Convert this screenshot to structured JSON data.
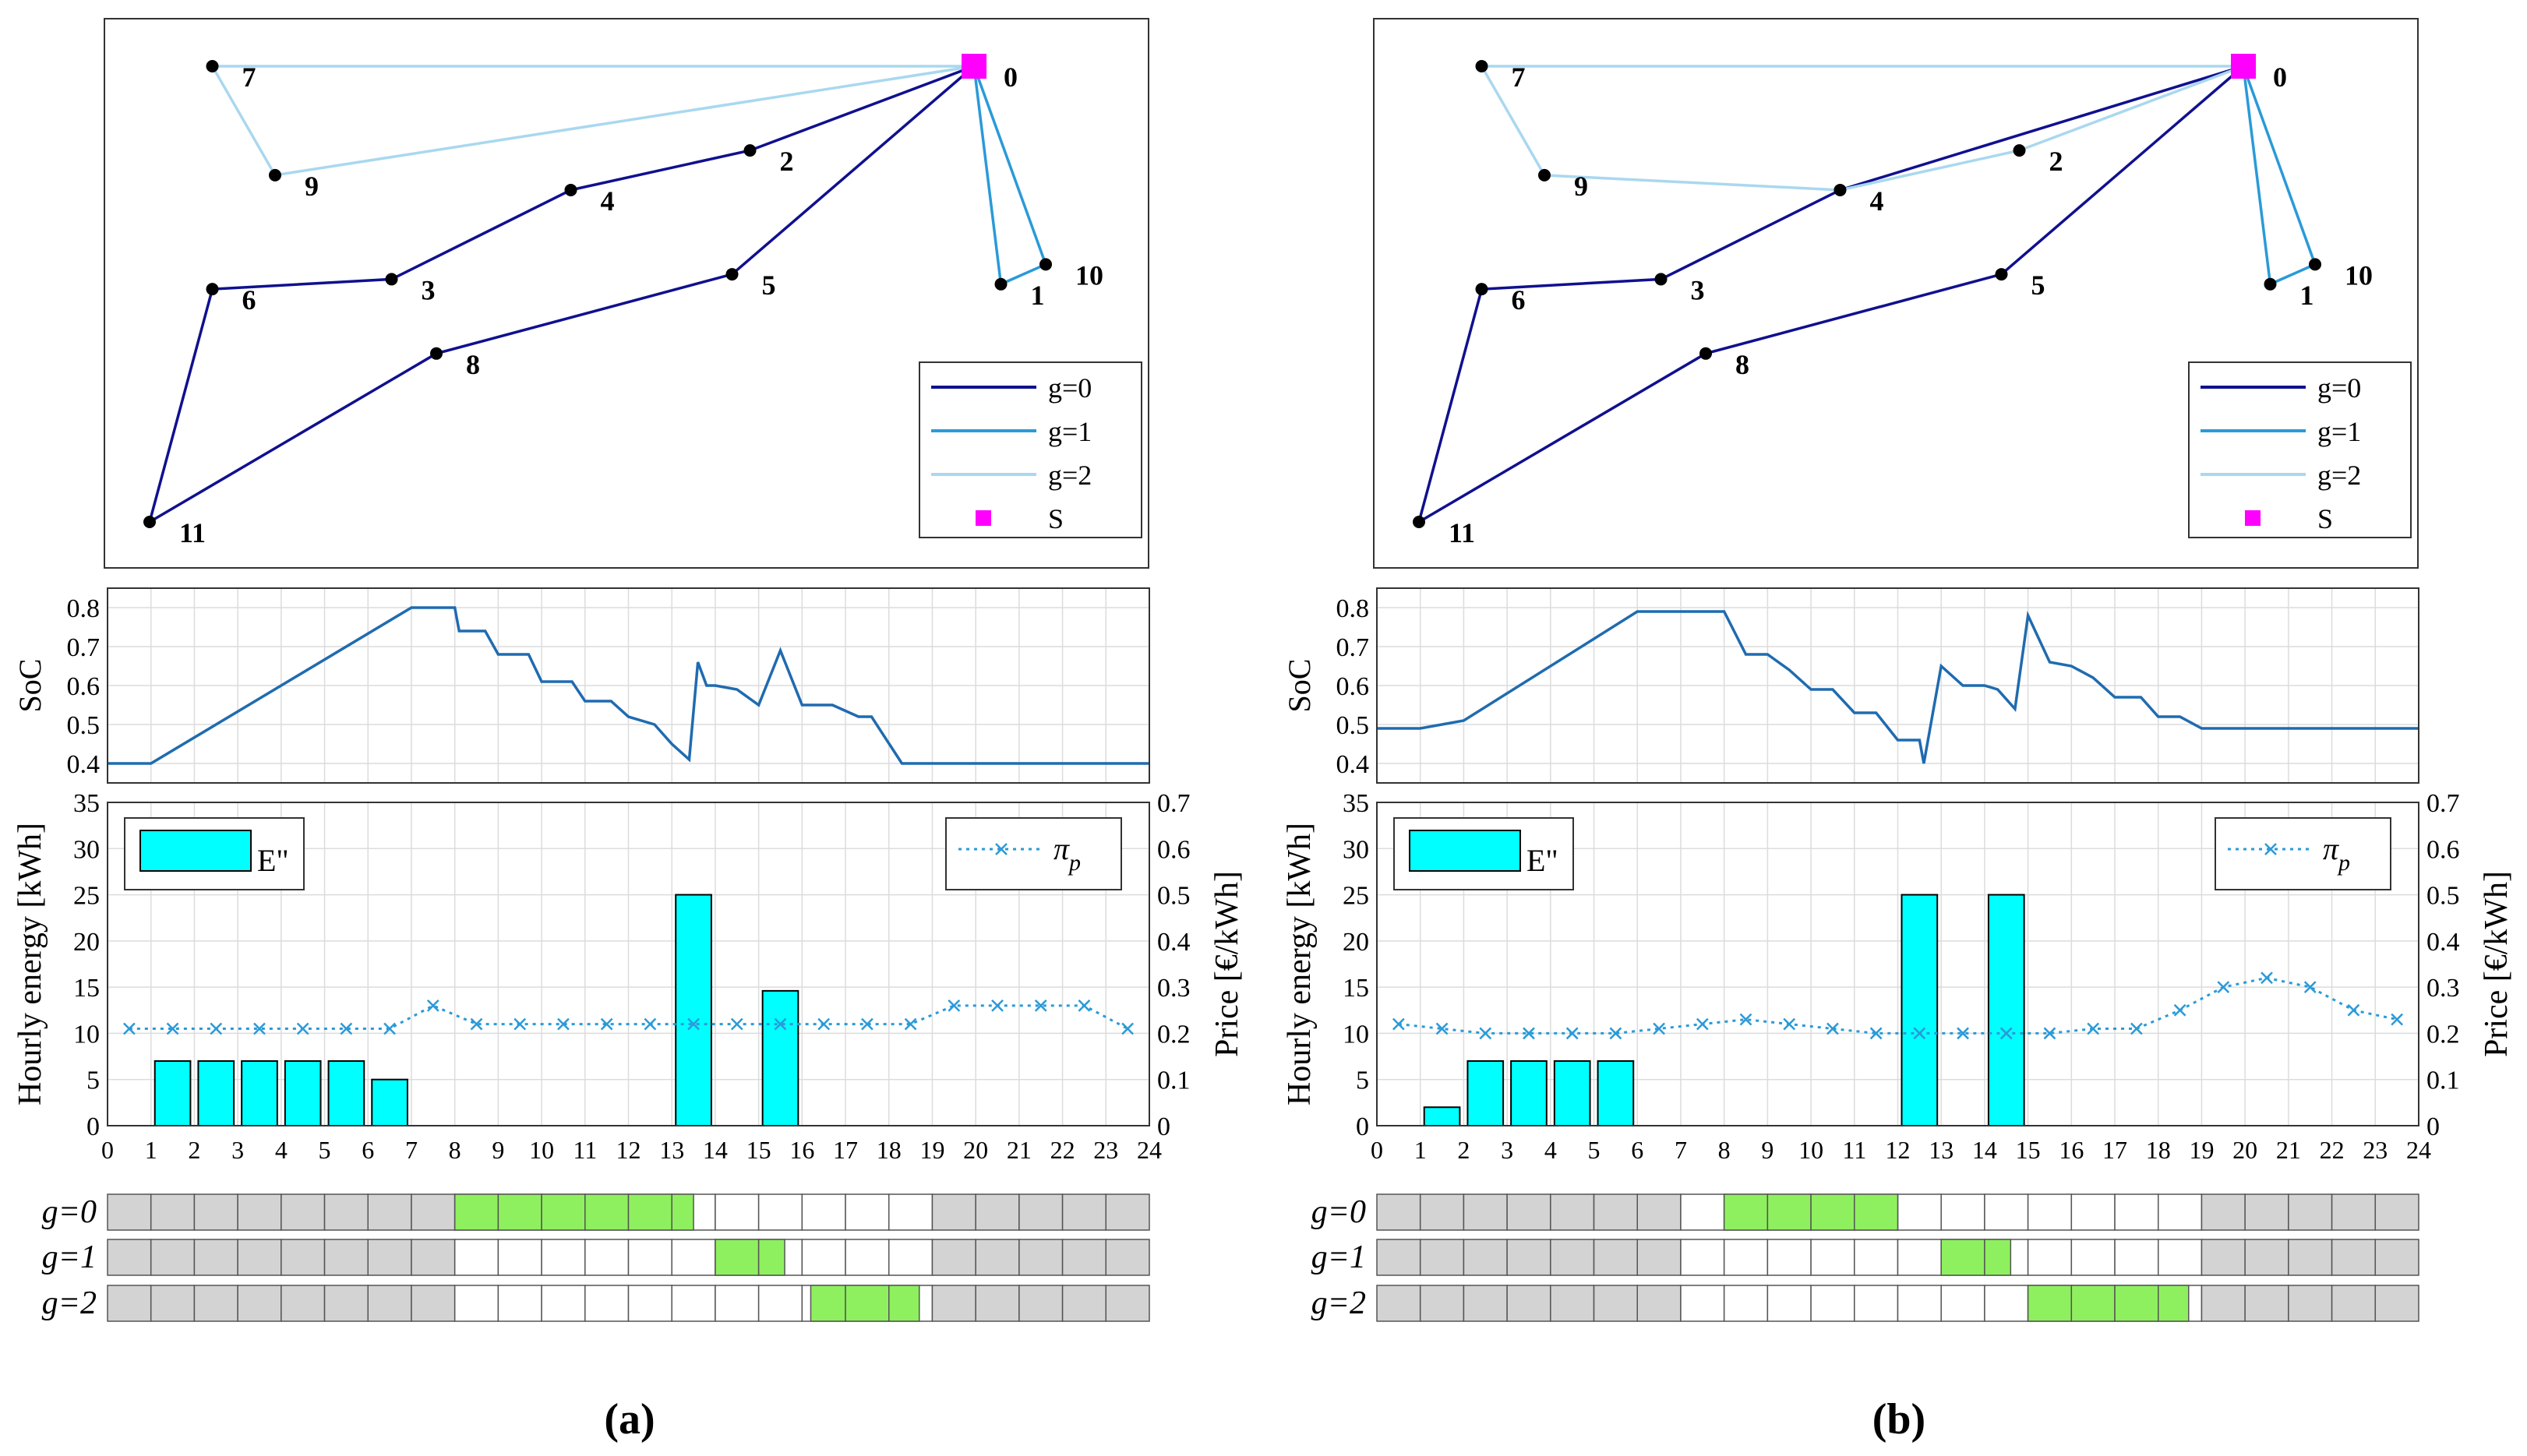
{
  "figure": {
    "panels": [
      {
        "label": "(a)",
        "label_letter": "a"
      },
      {
        "label": "(b)",
        "label_letter": "b"
      }
    ]
  },
  "chart_data": [
    {
      "panel": "a",
      "type": "line",
      "subplot": "route-map",
      "nodes": [
        {
          "id": "0",
          "x": 1.0,
          "y": 1.0,
          "depot": true
        },
        {
          "id": "1",
          "x": 1.03,
          "y": 0.56
        },
        {
          "id": "2",
          "x": 0.75,
          "y": 0.83
        },
        {
          "id": "3",
          "x": 0.35,
          "y": 0.57
        },
        {
          "id": "4",
          "x": 0.55,
          "y": 0.75
        },
        {
          "id": "5",
          "x": 0.73,
          "y": 0.58
        },
        {
          "id": "6",
          "x": 0.15,
          "y": 0.55
        },
        {
          "id": "7",
          "x": 0.15,
          "y": 1.0
        },
        {
          "id": "8",
          "x": 0.4,
          "y": 0.42
        },
        {
          "id": "9",
          "x": 0.22,
          "y": 0.78
        },
        {
          "id": "10",
          "x": 1.08,
          "y": 0.6
        },
        {
          "id": "11",
          "x": 0.08,
          "y": 0.08
        }
      ],
      "series": [
        {
          "name": "g=0",
          "color": "#10108f",
          "path": [
            "0",
            "2",
            "4",
            "3",
            "6",
            "11",
            "8",
            "5",
            "0"
          ]
        },
        {
          "name": "g=1",
          "color": "#2a9ad8",
          "path": [
            "0",
            "10",
            "1",
            "0"
          ]
        },
        {
          "name": "g=2",
          "color": "#a9d8ef",
          "path": [
            "0",
            "7",
            "9",
            "0"
          ]
        }
      ],
      "legend": [
        "g=0",
        "g=1",
        "g=2",
        "S"
      ],
      "legend_position": "bottom-right",
      "depot_color": "#ff00ff",
      "depot_label": "S"
    },
    {
      "panel": "a",
      "type": "line",
      "subplot": "soc",
      "ylabel": "SoC",
      "ylim": [
        0.35,
        0.85
      ],
      "yticks": [
        "0.8",
        "0.7",
        "0.6",
        "0.5",
        "0.4"
      ],
      "xlim": [
        0,
        24
      ],
      "grid": true,
      "x": [
        0,
        1,
        7,
        8,
        8.1,
        8.7,
        9,
        9.7,
        10,
        10.7,
        11,
        11.6,
        12,
        12.6,
        13,
        13.4,
        13.6,
        13.8,
        14,
        14.5,
        15,
        15.5,
        16,
        16.7,
        17.3,
        17.6,
        18.3,
        18.7,
        24
      ],
      "values": [
        0.4,
        0.4,
        0.8,
        0.8,
        0.74,
        0.74,
        0.68,
        0.68,
        0.61,
        0.61,
        0.56,
        0.56,
        0.52,
        0.5,
        0.45,
        0.41,
        0.66,
        0.6,
        0.6,
        0.59,
        0.55,
        0.69,
        0.55,
        0.55,
        0.52,
        0.52,
        0.4,
        0.4,
        0.4
      ],
      "color": "#1f6bb0"
    },
    {
      "panel": "a",
      "type": "bar",
      "subplot": "energy-price",
      "xlabel": "",
      "ylabel": "Hourly energy [kWh]",
      "ylabel_right": "Price [€/kWh]",
      "ylim": [
        0,
        35
      ],
      "ylim_right": [
        0,
        0.7
      ],
      "yticks": [
        "0",
        "5",
        "10",
        "15",
        "20",
        "25",
        "30",
        "35"
      ],
      "yticks_right": [
        "0",
        "0.1",
        "0.2",
        "0.3",
        "0.4",
        "0.5",
        "0.6",
        "0.7"
      ],
      "xticks": [
        "0",
        "1",
        "2",
        "3",
        "4",
        "5",
        "6",
        "7",
        "8",
        "9",
        "10",
        "11",
        "12",
        "13",
        "14",
        "15",
        "16",
        "17",
        "18",
        "19",
        "20",
        "21",
        "22",
        "23",
        "24"
      ],
      "bars": {
        "name": "E\"",
        "color": "#00ffff",
        "categories": [
          1.5,
          2.5,
          3.5,
          4.5,
          5.5,
          6.5,
          13.5,
          15.5
        ],
        "values": [
          7,
          7,
          7,
          7,
          7,
          5,
          25,
          14.6
        ]
      },
      "price": {
        "name": "π",
        "subscript": "p",
        "color": "#2a9ad8",
        "x": [
          0.5,
          1.5,
          2.5,
          3.5,
          4.5,
          5.5,
          6.5,
          7.5,
          8.5,
          9.5,
          10.5,
          11.5,
          12.5,
          13.5,
          14.5,
          15.5,
          16.5,
          17.5,
          18.5,
          19.5,
          20.5,
          21.5,
          22.5,
          23.5
        ],
        "values": [
          0.21,
          0.21,
          0.21,
          0.21,
          0.21,
          0.21,
          0.21,
          0.26,
          0.22,
          0.22,
          0.22,
          0.22,
          0.22,
          0.22,
          0.22,
          0.22,
          0.22,
          0.22,
          0.22,
          0.26,
          0.26,
          0.26,
          0.26,
          0.21
        ]
      },
      "grid": true,
      "legend_position": "top-left / top-right"
    },
    {
      "panel": "a",
      "type": "table",
      "subplot": "schedule",
      "rows": [
        {
          "label": "g",
          "label_suffix": "=0",
          "available": [
            [
              8,
              18.7
            ]
          ],
          "driving": [
            [
              8,
              13.5
            ]
          ]
        },
        {
          "label": "g",
          "label_suffix": "=1",
          "available": [
            [
              8,
              18.7
            ]
          ],
          "driving": [
            [
              14,
              15.6
            ]
          ]
        },
        {
          "label": "g",
          "label_suffix": "=2",
          "available": [
            [
              8,
              18.7
            ]
          ],
          "driving": [
            [
              16.2,
              18.7
            ]
          ]
        }
      ],
      "colors": {
        "unavailable": "#d3d3d3",
        "idle": "#ffffff",
        "driving": "#8ef05e"
      }
    },
    {
      "panel": "b",
      "type": "line",
      "subplot": "route-map",
      "nodes": [
        {
          "id": "0",
          "x": 1.0,
          "y": 1.0,
          "depot": true
        },
        {
          "id": "1",
          "x": 1.03,
          "y": 0.56
        },
        {
          "id": "2",
          "x": 0.75,
          "y": 0.83
        },
        {
          "id": "3",
          "x": 0.35,
          "y": 0.57
        },
        {
          "id": "4",
          "x": 0.55,
          "y": 0.75
        },
        {
          "id": "5",
          "x": 0.73,
          "y": 0.58
        },
        {
          "id": "6",
          "x": 0.15,
          "y": 0.55
        },
        {
          "id": "7",
          "x": 0.15,
          "y": 1.0
        },
        {
          "id": "8",
          "x": 0.4,
          "y": 0.42
        },
        {
          "id": "9",
          "x": 0.22,
          "y": 0.78
        },
        {
          "id": "10",
          "x": 1.08,
          "y": 0.6
        },
        {
          "id": "11",
          "x": 0.08,
          "y": 0.08
        }
      ],
      "series": [
        {
          "name": "g=0",
          "color": "#10108f",
          "path": [
            "0",
            "4",
            "3",
            "6",
            "11",
            "8",
            "5",
            "0"
          ]
        },
        {
          "name": "g=1",
          "color": "#2a9ad8",
          "path": [
            "0",
            "10",
            "1",
            "0"
          ]
        },
        {
          "name": "g=2",
          "color": "#a9d8ef",
          "path": [
            "0",
            "7",
            "9",
            "4",
            "2",
            "0"
          ]
        }
      ],
      "legend": [
        "g=0",
        "g=1",
        "g=2",
        "S"
      ],
      "legend_position": "bottom-right",
      "depot_color": "#ff00ff",
      "depot_label": "S"
    },
    {
      "panel": "b",
      "type": "line",
      "subplot": "soc",
      "ylabel": "SoC",
      "ylim": [
        0.35,
        0.85
      ],
      "yticks": [
        "0.8",
        "0.7",
        "0.6",
        "0.5",
        "0.4"
      ],
      "xlim": [
        0,
        24
      ],
      "grid": true,
      "x": [
        0,
        1,
        2,
        6,
        8,
        8.5,
        9,
        9.5,
        10,
        10.5,
        11,
        11.5,
        12,
        12.5,
        12.6,
        13,
        13.5,
        14,
        14.3,
        14.7,
        15,
        15.5,
        16,
        16.5,
        17,
        17.6,
        18,
        18.5,
        19,
        24
      ],
      "values": [
        0.49,
        0.49,
        0.51,
        0.79,
        0.79,
        0.68,
        0.68,
        0.64,
        0.59,
        0.59,
        0.53,
        0.53,
        0.46,
        0.46,
        0.4,
        0.65,
        0.6,
        0.6,
        0.59,
        0.54,
        0.78,
        0.66,
        0.65,
        0.62,
        0.57,
        0.57,
        0.52,
        0.52,
        0.49,
        0.49
      ],
      "color": "#1f6bb0"
    },
    {
      "panel": "b",
      "type": "bar",
      "subplot": "energy-price",
      "xlabel": "",
      "ylabel": "Hourly energy [kWh]",
      "ylabel_right": "Price [€/kWh]",
      "ylim": [
        0,
        35
      ],
      "ylim_right": [
        0,
        0.7
      ],
      "yticks": [
        "0",
        "5",
        "10",
        "15",
        "20",
        "25",
        "30",
        "35"
      ],
      "yticks_right": [
        "0",
        "0.1",
        "0.2",
        "0.3",
        "0.4",
        "0.5",
        "0.6",
        "0.7"
      ],
      "xticks": [
        "0",
        "1",
        "2",
        "3",
        "4",
        "5",
        "6",
        "7",
        "8",
        "9",
        "10",
        "11",
        "12",
        "13",
        "14",
        "15",
        "16",
        "17",
        "18",
        "19",
        "20",
        "21",
        "22",
        "23",
        "24"
      ],
      "bars": {
        "name": "E\"",
        "color": "#00ffff",
        "categories": [
          1.5,
          2.5,
          3.5,
          4.5,
          5.5,
          12.5,
          14.5
        ],
        "values": [
          2,
          7,
          7,
          7,
          7,
          25,
          25
        ]
      },
      "price": {
        "name": "π",
        "subscript": "p",
        "color": "#2a9ad8",
        "x": [
          0.5,
          1.5,
          2.5,
          3.5,
          4.5,
          5.5,
          6.5,
          7.5,
          8.5,
          9.5,
          10.5,
          11.5,
          12.5,
          13.5,
          14.5,
          15.5,
          16.5,
          17.5,
          18.5,
          19.5,
          20.5,
          21.5,
          22.5,
          23.5
        ],
        "values": [
          0.22,
          0.21,
          0.2,
          0.2,
          0.2,
          0.2,
          0.21,
          0.22,
          0.23,
          0.22,
          0.21,
          0.2,
          0.2,
          0.2,
          0.2,
          0.2,
          0.21,
          0.21,
          0.25,
          0.3,
          0.32,
          0.3,
          0.25,
          0.23
        ]
      },
      "grid": true,
      "legend_position": "top-left / top-right"
    },
    {
      "panel": "b",
      "type": "table",
      "subplot": "schedule",
      "rows": [
        {
          "label": "g",
          "label_suffix": "=0",
          "available": [
            [
              7,
              18.7
            ]
          ],
          "driving": [
            [
              8,
              12
            ]
          ]
        },
        {
          "label": "g",
          "label_suffix": "=1",
          "available": [
            [
              7,
              18.7
            ]
          ],
          "driving": [
            [
              13,
              14.6
            ]
          ]
        },
        {
          "label": "g",
          "label_suffix": "=2",
          "available": [
            [
              7,
              18.7
            ]
          ],
          "driving": [
            [
              15,
              18.7
            ]
          ]
        }
      ],
      "colors": {
        "unavailable": "#d3d3d3",
        "idle": "#ffffff",
        "driving": "#8ef05e"
      }
    }
  ]
}
